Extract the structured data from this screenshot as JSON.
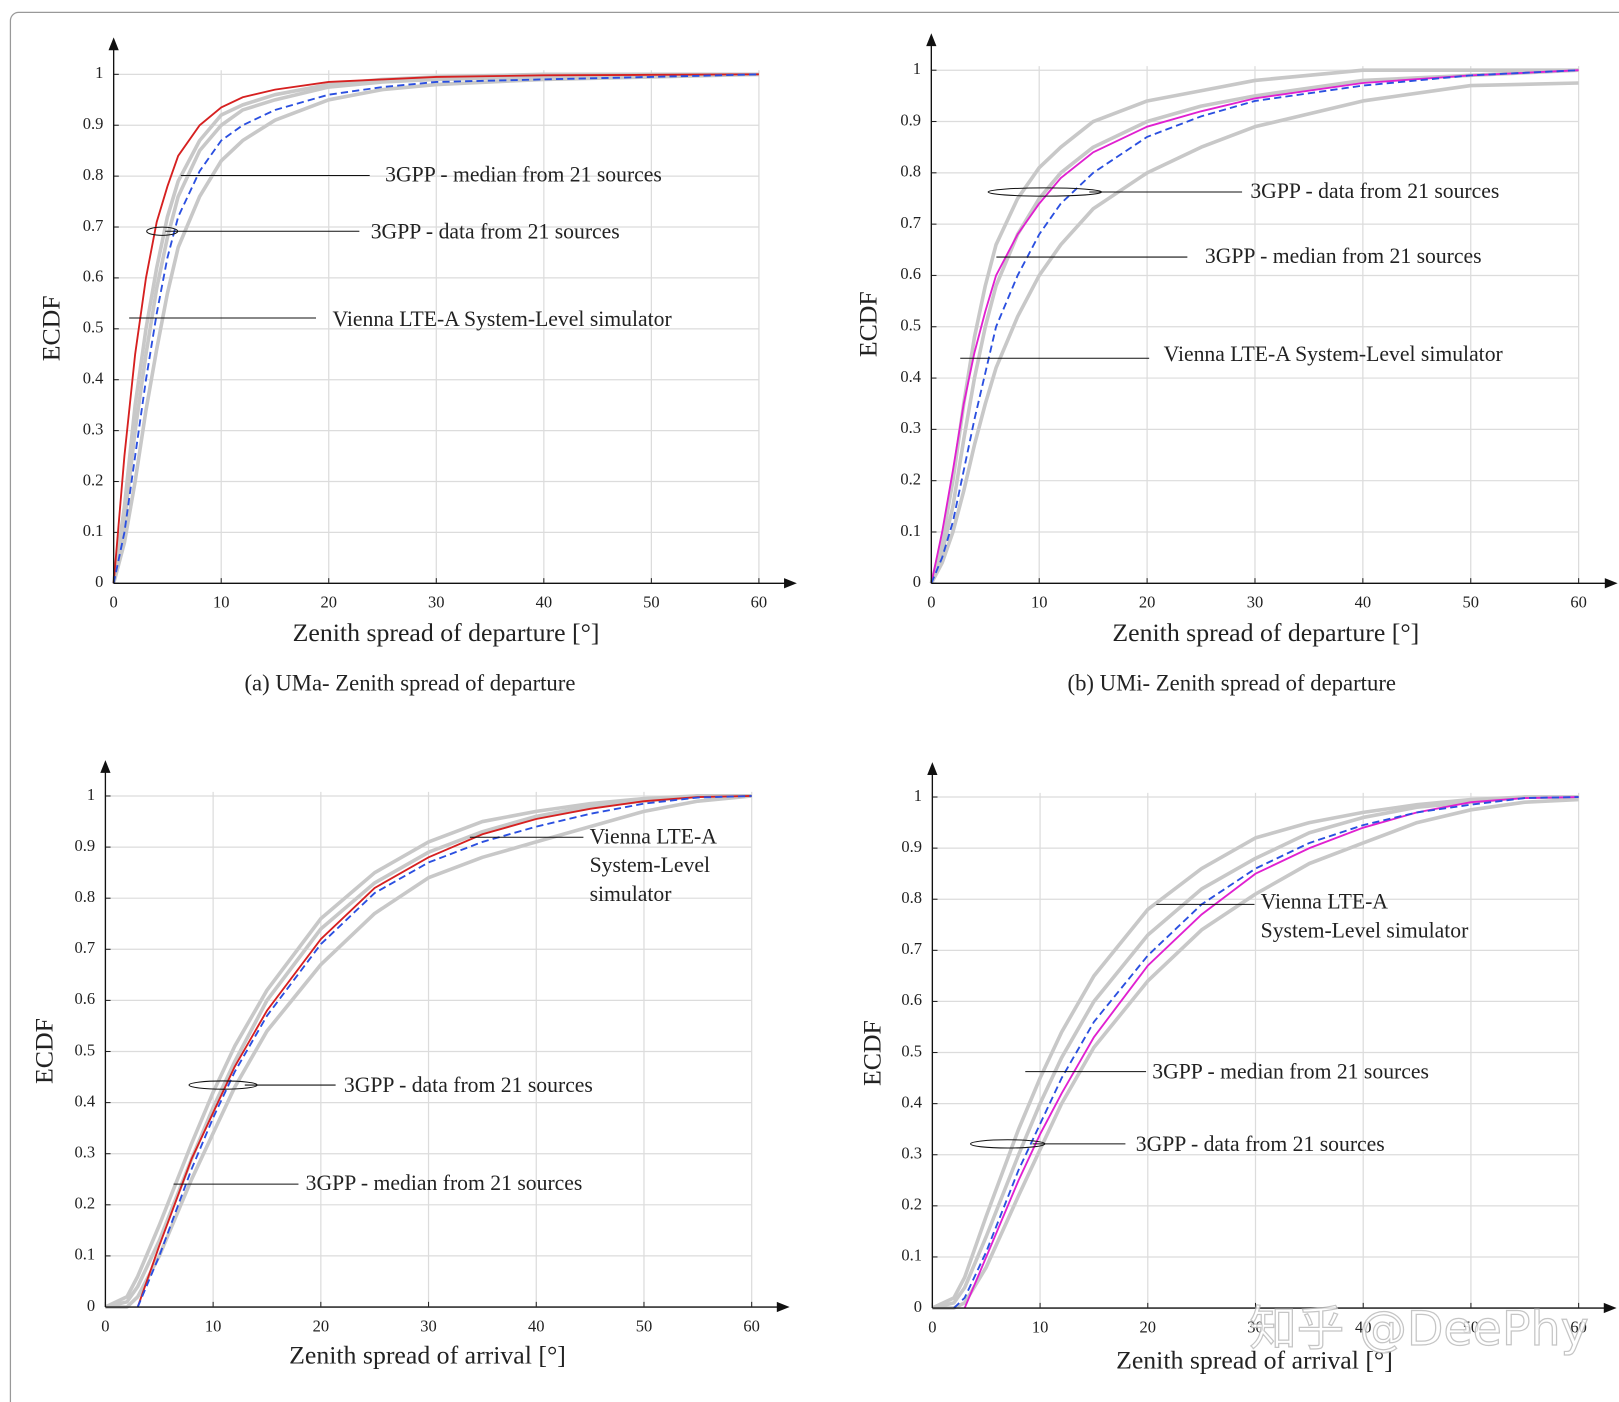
{
  "chart_data": [
    {
      "type": "line",
      "caption": "(a) UMa- Zenith spread of departure",
      "xlabel": "Zenith spread of departure [°]",
      "ylabel": "ECDF",
      "x": [
        0,
        1,
        2,
        3,
        4,
        5,
        6,
        8,
        10,
        12,
        15,
        20,
        25,
        30,
        40,
        50,
        60
      ],
      "xlim": [
        0,
        60
      ],
      "ylim": [
        0,
        1
      ],
      "xticks": [
        0,
        10,
        20,
        30,
        40,
        50,
        60
      ],
      "yticks": [
        0,
        0.1,
        0.2,
        0.3,
        0.4,
        0.5,
        0.6,
        0.7,
        0.8,
        0.9,
        1
      ],
      "grid": true,
      "series": [
        {
          "name": "3GPP - data from 21 sources",
          "color": "#c8c8c8",
          "lines": [
            [
              0,
              0.15,
              0.35,
              0.5,
              0.62,
              0.72,
              0.79,
              0.87,
              0.92,
              0.94,
              0.96,
              0.98,
              0.99,
              0.995,
              1,
              1,
              1
            ],
            [
              0,
              0.08,
              0.2,
              0.34,
              0.46,
              0.57,
              0.66,
              0.76,
              0.83,
              0.87,
              0.91,
              0.95,
              0.97,
              0.98,
              0.99,
              0.995,
              1
            ],
            [
              0,
              0.12,
              0.3,
              0.45,
              0.58,
              0.68,
              0.76,
              0.85,
              0.9,
              0.93,
              0.95,
              0.975,
              0.985,
              0.99,
              0.995,
              1,
              1
            ]
          ]
        },
        {
          "name": "Vienna LTE-A System-Level simulator",
          "color": "#d62020",
          "values": [
            0,
            0.25,
            0.45,
            0.6,
            0.71,
            0.78,
            0.84,
            0.9,
            0.935,
            0.955,
            0.97,
            0.985,
            0.99,
            0.995,
            0.998,
            0.999,
            1
          ]
        },
        {
          "name": "3GPP - median from 21 sources",
          "color": "#2a4fe0",
          "dashed": true,
          "values": [
            0,
            0.1,
            0.25,
            0.4,
            0.53,
            0.64,
            0.72,
            0.81,
            0.87,
            0.9,
            0.93,
            0.96,
            0.975,
            0.985,
            0.99,
            0.995,
            1
          ]
        }
      ]
    },
    {
      "type": "line",
      "caption": "(b) UMi- Zenith spread of departure",
      "xlabel": "Zenith spread of departure [°]",
      "ylabel": "ECDF",
      "x": [
        0,
        1,
        2,
        3,
        4,
        5,
        6,
        8,
        10,
        12,
        15,
        20,
        25,
        30,
        40,
        50,
        60
      ],
      "xlim": [
        0,
        60
      ],
      "ylim": [
        0,
        1
      ],
      "xticks": [
        0,
        10,
        20,
        30,
        40,
        50,
        60
      ],
      "yticks": [
        0,
        0.1,
        0.2,
        0.3,
        0.4,
        0.5,
        0.6,
        0.7,
        0.8,
        0.9,
        1
      ],
      "grid": true,
      "series": [
        {
          "name": "3GPP - data from 21 sources",
          "color": "#c8c8c8",
          "lines": [
            [
              0,
              0.08,
              0.2,
              0.35,
              0.48,
              0.58,
              0.66,
              0.75,
              0.81,
              0.85,
              0.9,
              0.94,
              0.96,
              0.98,
              1,
              1,
              1
            ],
            [
              0,
              0.04,
              0.1,
              0.18,
              0.27,
              0.35,
              0.42,
              0.52,
              0.6,
              0.66,
              0.73,
              0.8,
              0.85,
              0.89,
              0.94,
              0.97,
              0.975
            ],
            [
              0,
              0.06,
              0.15,
              0.28,
              0.4,
              0.5,
              0.58,
              0.68,
              0.75,
              0.8,
              0.85,
              0.9,
              0.93,
              0.95,
              0.98,
              0.99,
              1
            ]
          ]
        },
        {
          "name": "Vienna LTE-A System-Level simulator",
          "color": "#e020d0",
          "values": [
            0,
            0.1,
            0.22,
            0.35,
            0.45,
            0.53,
            0.6,
            0.68,
            0.74,
            0.79,
            0.84,
            0.89,
            0.92,
            0.945,
            0.975,
            0.99,
            1
          ]
        },
        {
          "name": "3GPP - median from 21 sources",
          "color": "#2a4fe0",
          "dashed": true,
          "values": [
            0,
            0.05,
            0.12,
            0.22,
            0.32,
            0.41,
            0.5,
            0.6,
            0.68,
            0.74,
            0.8,
            0.87,
            0.91,
            0.94,
            0.97,
            0.99,
            1
          ]
        }
      ]
    },
    {
      "type": "line",
      "xlabel": "Zenith spread of arrival [°]",
      "ylabel": "ECDF",
      "x": [
        0,
        2,
        3,
        5,
        8,
        10,
        12,
        15,
        20,
        25,
        30,
        35,
        40,
        45,
        50,
        55,
        60
      ],
      "xlim": [
        0,
        60
      ],
      "ylim": [
        0,
        1
      ],
      "xticks": [
        0,
        10,
        20,
        30,
        40,
        50,
        60
      ],
      "yticks": [
        0,
        0.1,
        0.2,
        0.3,
        0.4,
        0.5,
        0.6,
        0.7,
        0.8,
        0.9,
        1
      ],
      "grid": true,
      "series": [
        {
          "name": "3GPP - data from 21 sources",
          "color": "#c8c8c8",
          "lines": [
            [
              0,
              0.02,
              0.06,
              0.16,
              0.32,
              0.42,
              0.51,
              0.62,
              0.76,
              0.85,
              0.91,
              0.95,
              0.97,
              0.985,
              0.995,
              1,
              1
            ],
            [
              0,
              0,
              0.02,
              0.1,
              0.25,
              0.34,
              0.43,
              0.54,
              0.67,
              0.77,
              0.84,
              0.88,
              0.91,
              0.94,
              0.97,
              0.99,
              1
            ],
            [
              0,
              0.01,
              0.04,
              0.13,
              0.29,
              0.39,
              0.48,
              0.6,
              0.74,
              0.83,
              0.89,
              0.93,
              0.96,
              0.98,
              0.99,
              1,
              1
            ]
          ]
        },
        {
          "name": "Vienna LTE-A System-Level simulator",
          "color": "#d62020",
          "values": [
            null,
            null,
            0,
            0.12,
            0.29,
            0.38,
            0.47,
            0.58,
            0.72,
            0.82,
            0.88,
            0.925,
            0.955,
            0.975,
            0.99,
            0.998,
            1
          ]
        },
        {
          "name": "3GPP - median from 21 sources",
          "color": "#2a4fe0",
          "dashed": true,
          "values": [
            null,
            null,
            0,
            0.1,
            0.27,
            0.37,
            0.46,
            0.57,
            0.71,
            0.81,
            0.87,
            0.91,
            0.94,
            0.965,
            0.985,
            0.997,
            1
          ]
        }
      ]
    },
    {
      "type": "line",
      "xlabel": "Zenith spread of arrival [°]",
      "ylabel": "ECDF",
      "x": [
        0,
        2,
        3,
        5,
        8,
        10,
        12,
        15,
        20,
        25,
        30,
        35,
        40,
        45,
        50,
        55,
        60
      ],
      "xlim": [
        0,
        60
      ],
      "ylim": [
        0,
        1
      ],
      "xticks": [
        0,
        10,
        20,
        30,
        40,
        50,
        60
      ],
      "yticks": [
        0,
        0.1,
        0.2,
        0.3,
        0.4,
        0.5,
        0.6,
        0.7,
        0.8,
        0.9,
        1
      ],
      "grid": true,
      "series": [
        {
          "name": "3GPP - data from 21 sources",
          "color": "#c8c8c8",
          "lines": [
            [
              0,
              0.02,
              0.06,
              0.18,
              0.35,
              0.45,
              0.54,
              0.65,
              0.78,
              0.86,
              0.92,
              0.95,
              0.97,
              0.985,
              0.995,
              1,
              1
            ],
            [
              0,
              0,
              0.01,
              0.08,
              0.22,
              0.31,
              0.4,
              0.51,
              0.64,
              0.74,
              0.81,
              0.87,
              0.91,
              0.95,
              0.975,
              0.99,
              0.995
            ],
            [
              0,
              0.01,
              0.04,
              0.14,
              0.3,
              0.4,
              0.49,
              0.6,
              0.73,
              0.82,
              0.88,
              0.93,
              0.96,
              0.98,
              0.99,
              1,
              1
            ]
          ]
        },
        {
          "name": "Vienna LTE-A System-Level simulator",
          "color": "#e020d0",
          "values": [
            null,
            null,
            0,
            0.1,
            0.25,
            0.34,
            0.42,
            0.53,
            0.67,
            0.77,
            0.85,
            0.9,
            0.94,
            0.97,
            0.99,
            0.998,
            1
          ]
        },
        {
          "name": "3GPP - median from 21 sources",
          "color": "#2a4fe0",
          "dashed": true,
          "values": [
            null,
            0,
            0.02,
            0.11,
            0.27,
            0.36,
            0.45,
            0.56,
            0.69,
            0.79,
            0.86,
            0.91,
            0.945,
            0.97,
            0.985,
            0.998,
            1
          ]
        }
      ]
    }
  ],
  "watermark": "知乎 @DeePhy"
}
